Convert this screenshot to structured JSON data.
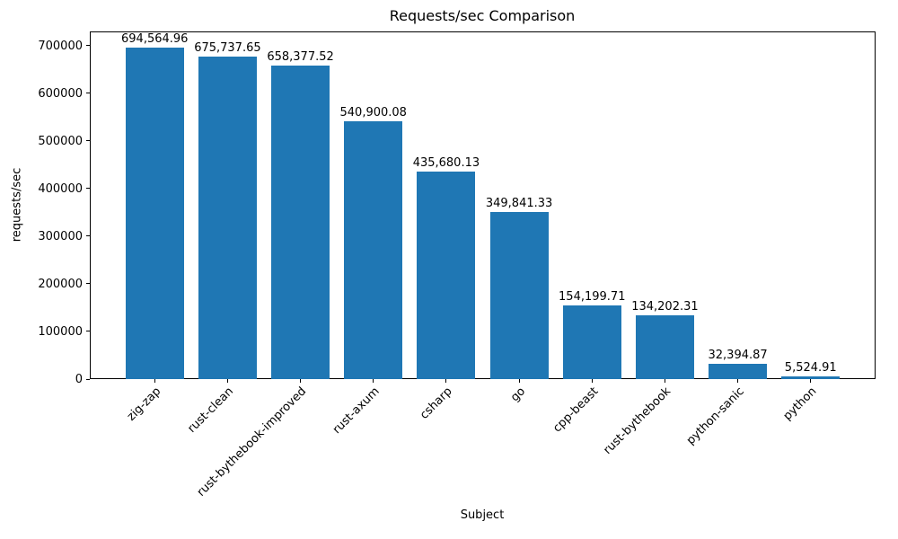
{
  "chart_data": {
    "type": "bar",
    "title": "Requests/sec Comparison",
    "xlabel": "Subject",
    "ylabel": "requests/sec",
    "categories": [
      "zig-zap",
      "rust-clean",
      "rust-bythebook-improved",
      "rust-axum",
      "csharp",
      "go",
      "cpp-beast",
      "rust-bythebook",
      "python-sanic",
      "python"
    ],
    "values": [
      694564.96,
      675737.65,
      658377.52,
      540900.08,
      435680.13,
      349841.33,
      154199.71,
      134202.31,
      32394.87,
      5524.91
    ],
    "value_labels": [
      "694,564.96",
      "675,737.65",
      "658,377.52",
      "540,900.08",
      "435,680.13",
      "349,841.33",
      "154,199.71",
      "134,202.31",
      "32,394.87",
      "5,524.91"
    ],
    "yticks": [
      0,
      100000,
      200000,
      300000,
      400000,
      500000,
      600000,
      700000
    ],
    "ytick_labels": [
      "0",
      "100000",
      "200000",
      "300000",
      "400000",
      "500000",
      "600000",
      "700000"
    ],
    "ylim": [
      0,
      729293
    ],
    "bar_color": "#1f77b4",
    "grid": false,
    "legend": false
  }
}
